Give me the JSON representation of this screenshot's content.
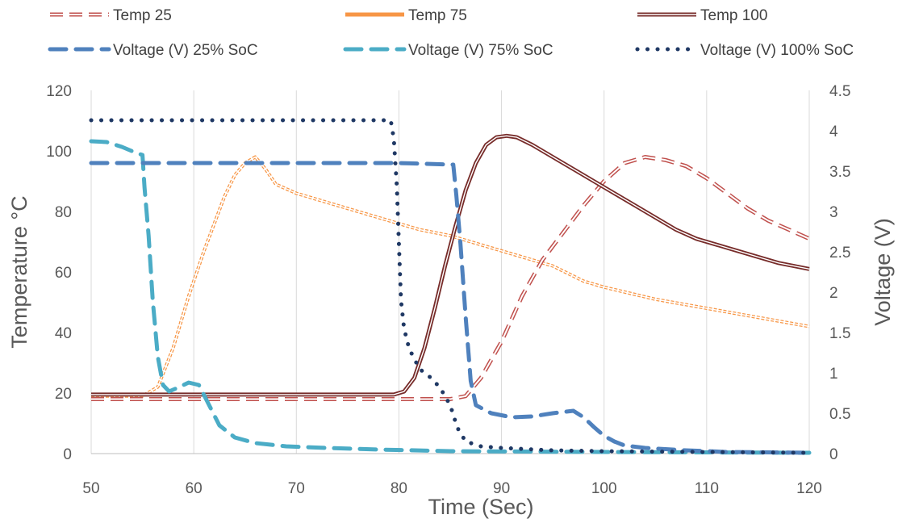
{
  "chart_data": {
    "type": "line",
    "xlabel": "Time (Sec)",
    "ylabel": "Temperature °C",
    "y2label": "Voltage (V)",
    "xlim": [
      50,
      120
    ],
    "ylim": [
      0,
      120
    ],
    "y2lim": [
      0,
      4.5
    ],
    "x_ticks": [
      "50",
      "60",
      "70",
      "80",
      "90",
      "100",
      "110",
      "120"
    ],
    "y_ticks": [
      "0",
      "20",
      "40",
      "60",
      "80",
      "100",
      "120"
    ],
    "y2_ticks": [
      "0",
      "0.5",
      "1",
      "1.5",
      "2",
      "2.5",
      "3",
      "3.5",
      "4",
      "4.5"
    ],
    "grid": "vertical",
    "legend_position": "top",
    "series": [
      {
        "name": "Temp 25",
        "axis": "left",
        "color": "#c0504d",
        "style": "double-dashed",
        "points": [
          [
            50,
            18
          ],
          [
            60,
            18
          ],
          [
            70,
            18
          ],
          [
            80,
            18
          ],
          [
            85,
            18
          ],
          [
            86.5,
            19
          ],
          [
            88,
            25
          ],
          [
            90,
            37
          ],
          [
            92,
            52
          ],
          [
            94,
            64
          ],
          [
            96,
            73
          ],
          [
            98,
            82
          ],
          [
            100,
            90
          ],
          [
            102,
            96
          ],
          [
            104,
            98
          ],
          [
            106,
            97
          ],
          [
            108,
            95
          ],
          [
            110,
            91
          ],
          [
            112,
            86
          ],
          [
            114,
            81
          ],
          [
            116,
            77
          ],
          [
            118,
            74
          ],
          [
            120,
            71
          ]
        ]
      },
      {
        "name": "Temp 75",
        "axis": "left",
        "color": "#f79646",
        "style": "double-thin",
        "points": [
          [
            50,
            19
          ],
          [
            55,
            19
          ],
          [
            56.5,
            22
          ],
          [
            58,
            35
          ],
          [
            59.5,
            52
          ],
          [
            61,
            67
          ],
          [
            62,
            76
          ],
          [
            63,
            85
          ],
          [
            64,
            92
          ],
          [
            65,
            96
          ],
          [
            66,
            98
          ],
          [
            67,
            94
          ],
          [
            68,
            89
          ],
          [
            70,
            86
          ],
          [
            72,
            84
          ],
          [
            75,
            81
          ],
          [
            78,
            78
          ],
          [
            80,
            76
          ],
          [
            82,
            74
          ],
          [
            85,
            72
          ],
          [
            88,
            69
          ],
          [
            90,
            67
          ],
          [
            93,
            64
          ],
          [
            95,
            62
          ],
          [
            98,
            57
          ],
          [
            100,
            55
          ],
          [
            105,
            51
          ],
          [
            110,
            48
          ],
          [
            115,
            45
          ],
          [
            120,
            42
          ]
        ]
      },
      {
        "name": "Temp 100",
        "axis": "left",
        "color": "#772c2a",
        "style": "double",
        "points": [
          [
            50,
            19.5
          ],
          [
            60,
            19.5
          ],
          [
            70,
            19.5
          ],
          [
            79.5,
            19.5
          ],
          [
            80.5,
            20.5
          ],
          [
            81.5,
            25
          ],
          [
            82.5,
            35
          ],
          [
            83.5,
            48
          ],
          [
            84.5,
            62
          ],
          [
            85.5,
            75
          ],
          [
            86.5,
            87
          ],
          [
            87.5,
            96
          ],
          [
            88.5,
            102
          ],
          [
            89.5,
            104.5
          ],
          [
            90.5,
            105
          ],
          [
            91.5,
            104.5
          ],
          [
            93,
            102
          ],
          [
            95,
            98
          ],
          [
            97,
            94
          ],
          [
            99,
            90
          ],
          [
            101,
            86
          ],
          [
            103,
            82
          ],
          [
            105,
            78
          ],
          [
            107,
            74
          ],
          [
            109,
            71
          ],
          [
            111,
            69
          ],
          [
            113,
            67
          ],
          [
            115,
            65
          ],
          [
            117,
            63
          ],
          [
            120,
            61
          ]
        ]
      },
      {
        "name": "Voltage (V) 25% SoC",
        "axis": "right",
        "color": "#4f81bd",
        "style": "dash-large",
        "points": [
          [
            50,
            3.6
          ],
          [
            60,
            3.6
          ],
          [
            70,
            3.6
          ],
          [
            80,
            3.6
          ],
          [
            85.3,
            3.58
          ],
          [
            85.6,
            3.2
          ],
          [
            86,
            2.6
          ],
          [
            86.5,
            1.7
          ],
          [
            87,
            0.9
          ],
          [
            87.5,
            0.6
          ],
          [
            89,
            0.5
          ],
          [
            91,
            0.45
          ],
          [
            93,
            0.46
          ],
          [
            95,
            0.5
          ],
          [
            97,
            0.53
          ],
          [
            98,
            0.45
          ],
          [
            99,
            0.33
          ],
          [
            100,
            0.22
          ],
          [
            101,
            0.15
          ],
          [
            102,
            0.1
          ],
          [
            104,
            0.07
          ],
          [
            108,
            0.04
          ],
          [
            112,
            0.02
          ],
          [
            120,
            0.01
          ]
        ]
      },
      {
        "name": "Voltage (V) 75% SoC",
        "axis": "right",
        "color": "#4bacc6",
        "style": "dash-large",
        "points": [
          [
            50,
            3.87
          ],
          [
            51.5,
            3.86
          ],
          [
            53,
            3.8
          ],
          [
            54.5,
            3.72
          ],
          [
            55,
            3.7
          ],
          [
            55.2,
            3.3
          ],
          [
            55.6,
            2.7
          ],
          [
            56,
            1.9
          ],
          [
            56.5,
            1.2
          ],
          [
            57,
            0.85
          ],
          [
            57.6,
            0.77
          ],
          [
            58.5,
            0.82
          ],
          [
            59.5,
            0.88
          ],
          [
            60.5,
            0.85
          ],
          [
            61.5,
            0.6
          ],
          [
            62.5,
            0.35
          ],
          [
            64,
            0.2
          ],
          [
            66,
            0.13
          ],
          [
            69,
            0.09
          ],
          [
            73,
            0.07
          ],
          [
            78,
            0.05
          ],
          [
            85,
            0.03
          ],
          [
            100,
            0.02
          ],
          [
            120,
            0.01
          ]
        ]
      },
      {
        "name": "Voltage (V) 100% SoC",
        "axis": "right",
        "color": "#1f3864",
        "style": "dotted",
        "points": [
          [
            50,
            4.13
          ],
          [
            60,
            4.13
          ],
          [
            70,
            4.13
          ],
          [
            79.2,
            4.13
          ],
          [
            79.5,
            3.9
          ],
          [
            79.8,
            3.3
          ],
          [
            80,
            2.6
          ],
          [
            80.2,
            1.9
          ],
          [
            80.5,
            1.55
          ],
          [
            81,
            1.3
          ],
          [
            82,
            1.05
          ],
          [
            83,
            0.95
          ],
          [
            84,
            0.82
          ],
          [
            85,
            0.6
          ],
          [
            85.7,
            0.32
          ],
          [
            86.5,
            0.15
          ],
          [
            88,
            0.09
          ],
          [
            90,
            0.07
          ],
          [
            95,
            0.04
          ],
          [
            100,
            0.03
          ],
          [
            110,
            0.02
          ],
          [
            120,
            0.01
          ]
        ]
      }
    ]
  }
}
